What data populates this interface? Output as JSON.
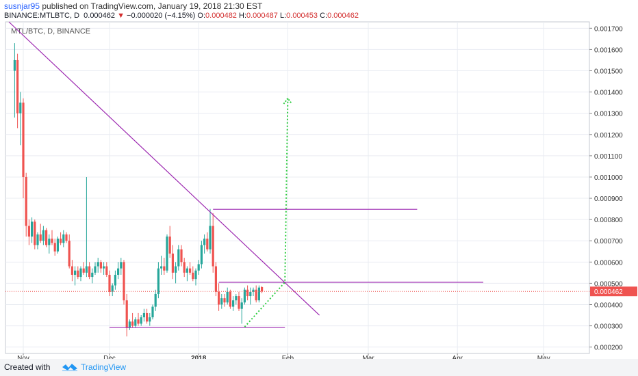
{
  "header": {
    "author": "susnjar95",
    "published": " published on TradingView.com, January 19, 2018 21:30 EST",
    "symbol": "BINANCE:MTLBTC, D",
    "last": "0.000462",
    "change": "−0.000020 (−4.15%)",
    "o_label": "O:",
    "o_value": "0.000482",
    "h_label": "H:",
    "h_value": "0.000487",
    "l_label": "L:",
    "l_value": "0.000453",
    "c_label": "C:",
    "c_value": "0.000462"
  },
  "footer": {
    "created_with": "Created with",
    "brand": "TradingView"
  },
  "colors": {
    "up": "#26a69a",
    "down": "#ef5350",
    "trend": "#9c27b0",
    "projection": "#2ecc40",
    "price_line": "#ef5350",
    "grid": "#e9ecf2"
  },
  "chart_data": {
    "type": "candlestick",
    "title": "MTL/BTC, D, BINANCE",
    "x_ticks": [
      "Nov",
      "Dec",
      "2018",
      "Feb",
      "Mar",
      "Apr",
      "May"
    ],
    "y_ticks": [
      "0.001700",
      "0.001600",
      "0.001500",
      "0.001400",
      "0.001300",
      "0.001200",
      "0.001100",
      "0.001000",
      "0.000900",
      "0.000800",
      "0.000700",
      "0.000600",
      "0.000500",
      "0.000400",
      "0.000300",
      "0.000200"
    ],
    "ylim": [
      0.00017,
      0.00173
    ],
    "last_price_label": "0.000462",
    "last_price": 0.000462,
    "candles": [
      {
        "date": "2017-10-29",
        "o": 0.0015,
        "h": 0.00163,
        "l": 0.00128,
        "c": 0.00155
      },
      {
        "date": "2017-10-30",
        "o": 0.00155,
        "h": 0.00158,
        "l": 0.00123,
        "c": 0.0013
      },
      {
        "date": "2017-10-31",
        "o": 0.0013,
        "h": 0.0014,
        "l": 0.00115,
        "c": 0.00135
      },
      {
        "date": "2017-11-01",
        "o": 0.00135,
        "h": 0.00137,
        "l": 0.0009,
        "c": 0.001
      },
      {
        "date": "2017-11-02",
        "o": 0.001,
        "h": 0.00102,
        "l": 0.00072,
        "c": 0.00077
      },
      {
        "date": "2017-11-03",
        "o": 0.00077,
        "h": 0.0008,
        "l": 0.00068,
        "c": 0.00072
      },
      {
        "date": "2017-11-04",
        "o": 0.00072,
        "h": 0.00081,
        "l": 0.00069,
        "c": 0.00079
      },
      {
        "date": "2017-11-05",
        "o": 0.00079,
        "h": 0.0008,
        "l": 0.00066,
        "c": 0.00068
      },
      {
        "date": "2017-11-06",
        "o": 0.00068,
        "h": 0.00074,
        "l": 0.00066,
        "c": 0.00073
      },
      {
        "date": "2017-11-07",
        "o": 0.00073,
        "h": 0.00078,
        "l": 0.00069,
        "c": 0.0007
      },
      {
        "date": "2017-11-08",
        "o": 0.0007,
        "h": 0.00077,
        "l": 0.00068,
        "c": 0.00075
      },
      {
        "date": "2017-11-09",
        "o": 0.00075,
        "h": 0.00076,
        "l": 0.00067,
        "c": 0.00068
      },
      {
        "date": "2017-11-10",
        "o": 0.00068,
        "h": 0.00073,
        "l": 0.00064,
        "c": 0.00071
      },
      {
        "date": "2017-11-11",
        "o": 0.00071,
        "h": 0.00075,
        "l": 0.00068,
        "c": 0.00069
      },
      {
        "date": "2017-11-12",
        "o": 0.00069,
        "h": 0.00071,
        "l": 0.00063,
        "c": 0.00065
      },
      {
        "date": "2017-11-13",
        "o": 0.00065,
        "h": 0.00072,
        "l": 0.00064,
        "c": 0.00071
      },
      {
        "date": "2017-11-14",
        "o": 0.00071,
        "h": 0.00074,
        "l": 0.00068,
        "c": 0.00069
      },
      {
        "date": "2017-11-15",
        "o": 0.00069,
        "h": 0.00075,
        "l": 0.00067,
        "c": 0.00073
      },
      {
        "date": "2017-11-16",
        "o": 0.00073,
        "h": 0.00074,
        "l": 0.00069,
        "c": 0.0007
      },
      {
        "date": "2017-11-17",
        "o": 0.0007,
        "h": 0.00073,
        "l": 0.00057,
        "c": 0.00058
      },
      {
        "date": "2017-11-18",
        "o": 0.00058,
        "h": 0.00061,
        "l": 0.00051,
        "c": 0.00054
      },
      {
        "date": "2017-11-19",
        "o": 0.00054,
        "h": 0.00058,
        "l": 0.00049,
        "c": 0.00056
      },
      {
        "date": "2017-11-20",
        "o": 0.00056,
        "h": 0.00058,
        "l": 0.00052,
        "c": 0.00053
      },
      {
        "date": "2017-11-21",
        "o": 0.00053,
        "h": 0.00058,
        "l": 0.00051,
        "c": 0.00057
      },
      {
        "date": "2017-11-22",
        "o": 0.00057,
        "h": 0.0006,
        "l": 0.00054,
        "c": 0.00055
      },
      {
        "date": "2017-11-23",
        "o": 0.00055,
        "h": 0.001,
        "l": 0.00053,
        "c": 0.00058
      },
      {
        "date": "2017-11-24",
        "o": 0.00058,
        "h": 0.0006,
        "l": 0.00052,
        "c": 0.00053
      },
      {
        "date": "2017-11-25",
        "o": 0.00053,
        "h": 0.00057,
        "l": 0.0005,
        "c": 0.00055
      },
      {
        "date": "2017-11-26",
        "o": 0.00055,
        "h": 0.0006,
        "l": 0.00054,
        "c": 0.00058
      },
      {
        "date": "2017-11-27",
        "o": 0.00058,
        "h": 0.00062,
        "l": 0.00055,
        "c": 0.0006
      },
      {
        "date": "2017-11-28",
        "o": 0.0006,
        "h": 0.00061,
        "l": 0.00055,
        "c": 0.00057
      },
      {
        "date": "2017-11-29",
        "o": 0.00057,
        "h": 0.0006,
        "l": 0.00054,
        "c": 0.00058
      },
      {
        "date": "2017-11-30",
        "o": 0.00058,
        "h": 0.0006,
        "l": 0.00053,
        "c": 0.00054
      },
      {
        "date": "2017-12-01",
        "o": 0.00054,
        "h": 0.00056,
        "l": 0.00044,
        "c": 0.00046
      },
      {
        "date": "2017-12-02",
        "o": 0.00046,
        "h": 0.0005,
        "l": 0.00044,
        "c": 0.00049
      },
      {
        "date": "2017-12-03",
        "o": 0.00049,
        "h": 0.00056,
        "l": 0.00047,
        "c": 0.00054
      },
      {
        "date": "2017-12-04",
        "o": 0.00054,
        "h": 0.0006,
        "l": 0.00052,
        "c": 0.00057
      },
      {
        "date": "2017-12-05",
        "o": 0.00057,
        "h": 0.00062,
        "l": 0.00054,
        "c": 0.0006
      },
      {
        "date": "2017-12-06",
        "o": 0.0006,
        "h": 0.00061,
        "l": 0.0004,
        "c": 0.00042
      },
      {
        "date": "2017-12-07",
        "o": 0.00042,
        "h": 0.00045,
        "l": 0.00025,
        "c": 0.00029
      },
      {
        "date": "2017-12-08",
        "o": 0.00029,
        "h": 0.00033,
        "l": 0.00028,
        "c": 0.00032
      },
      {
        "date": "2017-12-09",
        "o": 0.00032,
        "h": 0.00036,
        "l": 0.00029,
        "c": 0.0003
      },
      {
        "date": "2017-12-10",
        "o": 0.0003,
        "h": 0.00034,
        "l": 0.00029,
        "c": 0.00033
      },
      {
        "date": "2017-12-11",
        "o": 0.00033,
        "h": 0.00036,
        "l": 0.0003,
        "c": 0.00031
      },
      {
        "date": "2017-12-12",
        "o": 0.00031,
        "h": 0.00035,
        "l": 0.0003,
        "c": 0.00034
      },
      {
        "date": "2017-12-13",
        "o": 0.00034,
        "h": 0.00038,
        "l": 0.00032,
        "c": 0.00036
      },
      {
        "date": "2017-12-14",
        "o": 0.00036,
        "h": 0.00038,
        "l": 0.00031,
        "c": 0.00032
      },
      {
        "date": "2017-12-15",
        "o": 0.00032,
        "h": 0.00036,
        "l": 0.0003,
        "c": 0.00034
      },
      {
        "date": "2017-12-16",
        "o": 0.00034,
        "h": 0.0004,
        "l": 0.00033,
        "c": 0.00039
      },
      {
        "date": "2017-12-17",
        "o": 0.00039,
        "h": 0.00047,
        "l": 0.00037,
        "c": 0.00045
      },
      {
        "date": "2017-12-18",
        "o": 0.00045,
        "h": 0.0006,
        "l": 0.00043,
        "c": 0.00057
      },
      {
        "date": "2017-12-19",
        "o": 0.00057,
        "h": 0.00063,
        "l": 0.00054,
        "c": 0.00058
      },
      {
        "date": "2017-12-20",
        "o": 0.00058,
        "h": 0.00062,
        "l": 0.00054,
        "c": 0.00056
      },
      {
        "date": "2017-12-21",
        "o": 0.00056,
        "h": 0.00073,
        "l": 0.00055,
        "c": 0.00072
      },
      {
        "date": "2017-12-22",
        "o": 0.00072,
        "h": 0.00077,
        "l": 0.00062,
        "c": 0.00064
      },
      {
        "date": "2017-12-23",
        "o": 0.00064,
        "h": 0.00068,
        "l": 0.00052,
        "c": 0.00055
      },
      {
        "date": "2017-12-24",
        "o": 0.00055,
        "h": 0.0006,
        "l": 0.0005,
        "c": 0.00058
      },
      {
        "date": "2017-12-25",
        "o": 0.00058,
        "h": 0.00068,
        "l": 0.00056,
        "c": 0.00066
      },
      {
        "date": "2017-12-26",
        "o": 0.00066,
        "h": 0.00068,
        "l": 0.00058,
        "c": 0.0006
      },
      {
        "date": "2017-12-27",
        "o": 0.0006,
        "h": 0.00062,
        "l": 0.00053,
        "c": 0.00055
      },
      {
        "date": "2017-12-28",
        "o": 0.00055,
        "h": 0.00058,
        "l": 0.00051,
        "c": 0.00057
      },
      {
        "date": "2017-12-29",
        "o": 0.00057,
        "h": 0.0006,
        "l": 0.00054,
        "c": 0.00055
      },
      {
        "date": "2017-12-30",
        "o": 0.00055,
        "h": 0.00058,
        "l": 0.00051,
        "c": 0.00052
      },
      {
        "date": "2017-12-31",
        "o": 0.00052,
        "h": 0.00057,
        "l": 0.00049,
        "c": 0.00056
      },
      {
        "date": "2018-01-01",
        "o": 0.00056,
        "h": 0.00061,
        "l": 0.00054,
        "c": 0.00059
      },
      {
        "date": "2018-01-02",
        "o": 0.00059,
        "h": 0.0007,
        "l": 0.00057,
        "c": 0.00068
      },
      {
        "date": "2018-01-03",
        "o": 0.00068,
        "h": 0.00073,
        "l": 0.00064,
        "c": 0.00071
      },
      {
        "date": "2018-01-04",
        "o": 0.00071,
        "h": 0.00074,
        "l": 0.00065,
        "c": 0.00066
      },
      {
        "date": "2018-01-05",
        "o": 0.00066,
        "h": 0.00085,
        "l": 0.00064,
        "c": 0.00077
      },
      {
        "date": "2018-01-06",
        "o": 0.00077,
        "h": 0.00083,
        "l": 0.00055,
        "c": 0.00058
      },
      {
        "date": "2018-01-07",
        "o": 0.00058,
        "h": 0.0006,
        "l": 0.00044,
        "c": 0.00046
      },
      {
        "date": "2018-01-08",
        "o": 0.00046,
        "h": 0.0005,
        "l": 0.00037,
        "c": 0.0004
      },
      {
        "date": "2018-01-09",
        "o": 0.0004,
        "h": 0.00045,
        "l": 0.00038,
        "c": 0.00043
      },
      {
        "date": "2018-01-10",
        "o": 0.00043,
        "h": 0.00045,
        "l": 0.00039,
        "c": 0.00041
      },
      {
        "date": "2018-01-11",
        "o": 0.00041,
        "h": 0.00048,
        "l": 0.0004,
        "c": 0.00046
      },
      {
        "date": "2018-01-12",
        "o": 0.00046,
        "h": 0.00047,
        "l": 0.00038,
        "c": 0.00039
      },
      {
        "date": "2018-01-13",
        "o": 0.00039,
        "h": 0.00044,
        "l": 0.00037,
        "c": 0.00042
      },
      {
        "date": "2018-01-14",
        "o": 0.00042,
        "h": 0.00045,
        "l": 0.0004,
        "c": 0.00044
      },
      {
        "date": "2018-01-15",
        "o": 0.00044,
        "h": 0.00046,
        "l": 0.00037,
        "c": 0.00038
      },
      {
        "date": "2018-01-16",
        "o": 0.00038,
        "h": 0.00043,
        "l": 0.00031,
        "c": 0.00041
      },
      {
        "date": "2018-01-17",
        "o": 0.00041,
        "h": 0.00048,
        "l": 0.0004,
        "c": 0.00047
      },
      {
        "date": "2018-01-18",
        "o": 0.00047,
        "h": 0.00049,
        "l": 0.00042,
        "c": 0.00044
      },
      {
        "date": "2018-01-19",
        "o": 0.00044,
        "h": 0.00048,
        "l": 0.0004,
        "c": 0.00046
      },
      {
        "date": "2018-01-20",
        "o": 0.00046,
        "h": 0.00048,
        "l": 0.00044,
        "c": 0.00047
      },
      {
        "date": "2018-01-21",
        "o": 0.00047,
        "h": 0.00049,
        "l": 0.00041,
        "c": 0.00042
      },
      {
        "date": "2018-01-22",
        "o": 0.00042,
        "h": 0.00049,
        "l": 0.00041,
        "c": 0.00048
      },
      {
        "date": "2018-01-23",
        "o": 0.000482,
        "h": 0.000487,
        "l": 0.000453,
        "c": 0.000462
      }
    ],
    "drawings": [
      {
        "name": "descending-trendline",
        "kind": "line",
        "from": {
          "date": "2017-10-27",
          "price": 0.00173
        },
        "to": {
          "date": "2018-02-12",
          "price": 0.00035
        }
      },
      {
        "name": "resistance-line",
        "kind": "hline",
        "from": {
          "date": "2018-01-06",
          "price": 0.000848
        },
        "to": {
          "date": "2018-03-18",
          "price": 0.000848
        }
      },
      {
        "name": "breakout-line",
        "kind": "hline",
        "from": {
          "date": "2018-01-08",
          "price": 0.000505
        },
        "to": {
          "date": "2018-04-10",
          "price": 0.000505
        }
      },
      {
        "name": "support-line",
        "kind": "hline",
        "from": {
          "date": "2017-12-01",
          "price": 0.000292
        },
        "to": {
          "date": "2018-01-31",
          "price": 0.000292
        }
      }
    ],
    "projection": {
      "path": [
        {
          "date": "2018-01-17",
          "price": 0.000295
        },
        {
          "date": "2018-01-31",
          "price": 0.000505
        },
        {
          "date": "2018-02-01",
          "price": 0.00137
        }
      ]
    }
  }
}
